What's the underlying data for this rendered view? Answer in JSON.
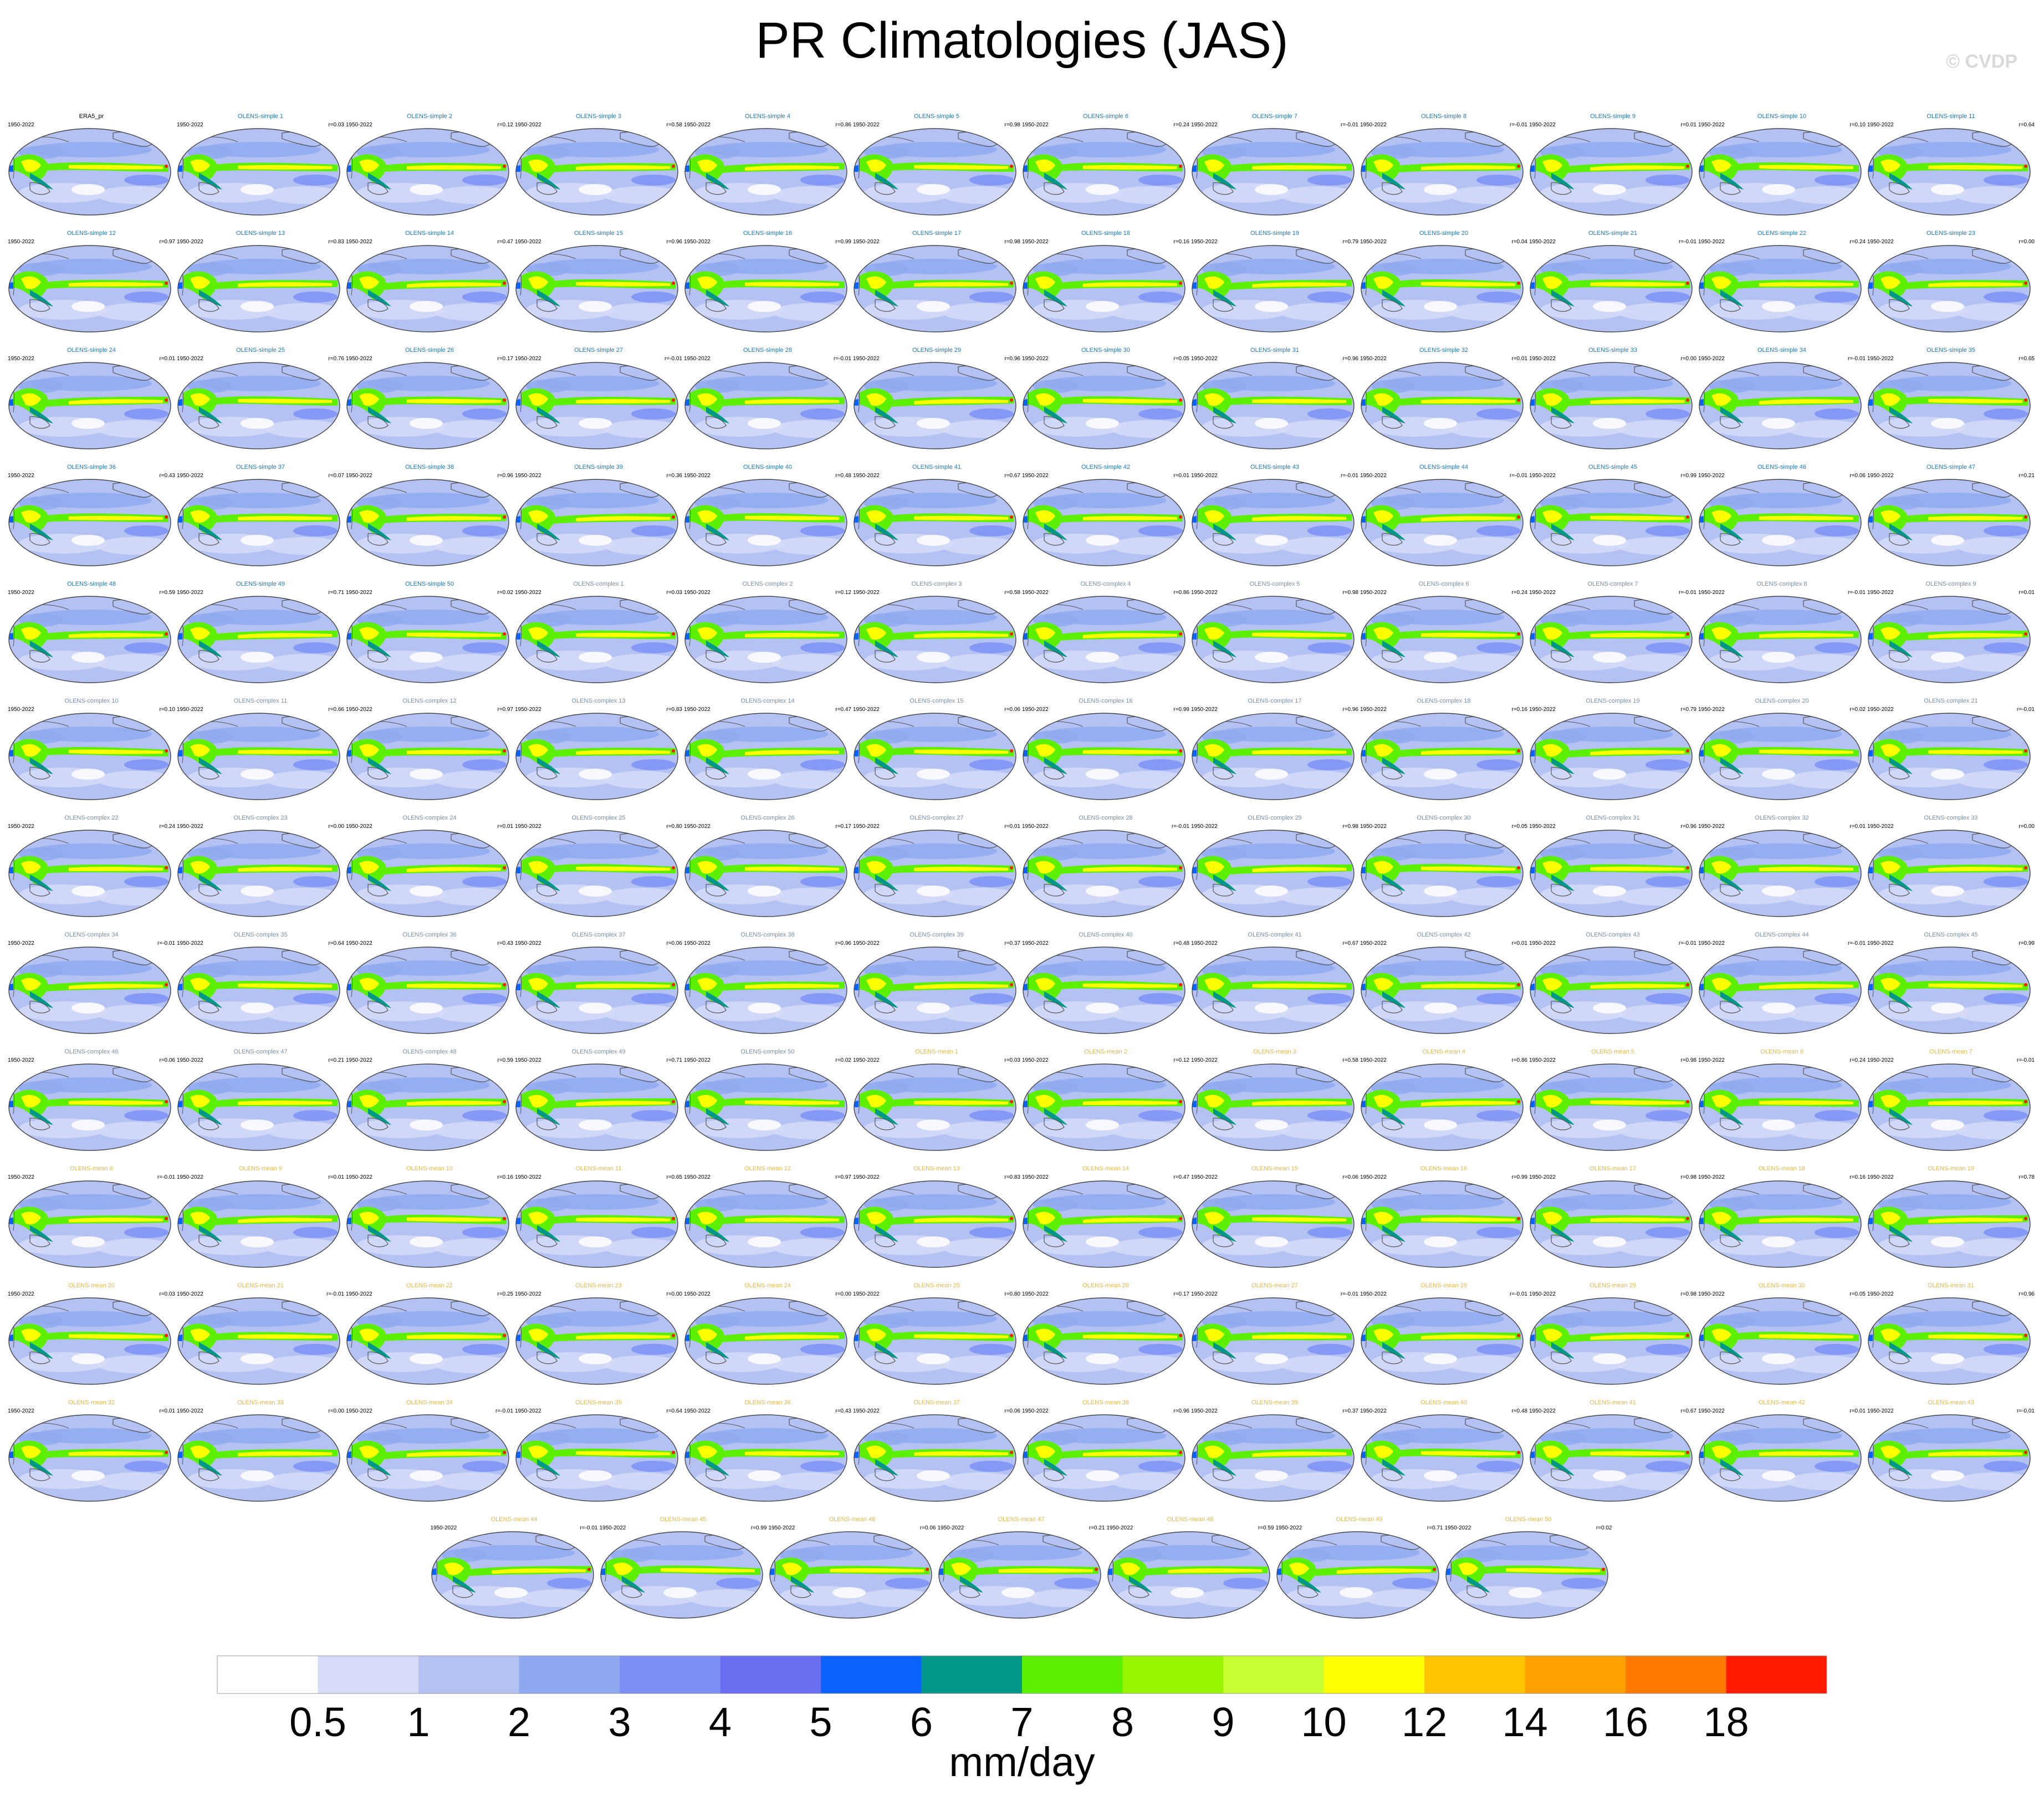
{
  "title": "PR Climatologies (JAS)",
  "watermark": "© CVDP",
  "panel_period": "1950-2022",
  "title_colors": {
    "reference": "#000000",
    "simple": "#1f78b4",
    "complex": "#7a8fa6",
    "mean": "#e0b84a"
  },
  "panels": [
    {
      "title": "ERA5_pr",
      "corr": "",
      "group": "reference"
    },
    {
      "title": "OLENS-simple 1",
      "corr": "r=0.03",
      "group": "simple"
    },
    {
      "title": "OLENS-simple 2",
      "corr": "r=0.12",
      "group": "simple"
    },
    {
      "title": "OLENS-simple 3",
      "corr": "r=0.58",
      "group": "simple"
    },
    {
      "title": "OLENS-simple 4",
      "corr": "r=0.86",
      "group": "simple"
    },
    {
      "title": "OLENS-simple 5",
      "corr": "r=0.98",
      "group": "simple"
    },
    {
      "title": "OLENS-simple 6",
      "corr": "r=0.24",
      "group": "simple"
    },
    {
      "title": "OLENS-simple 7",
      "corr": "r=-0.01",
      "group": "simple"
    },
    {
      "title": "OLENS-simple 8",
      "corr": "r=-0.01",
      "group": "simple"
    },
    {
      "title": "OLENS-simple 9",
      "corr": "r=0.01",
      "group": "simple"
    },
    {
      "title": "OLENS-simple 10",
      "corr": "r=0.10",
      "group": "simple"
    },
    {
      "title": "OLENS-simple 11",
      "corr": "r=0.64",
      "group": "simple"
    },
    {
      "title": "OLENS-simple 12",
      "corr": "r=0.97",
      "group": "simple"
    },
    {
      "title": "OLENS-simple 13",
      "corr": "r=0.83",
      "group": "simple"
    },
    {
      "title": "OLENS-simple 14",
      "corr": "r=0.47",
      "group": "simple"
    },
    {
      "title": "OLENS-simple 15",
      "corr": "r=0.96",
      "group": "simple"
    },
    {
      "title": "OLENS-simple 16",
      "corr": "r=0.99",
      "group": "simple"
    },
    {
      "title": "OLENS-simple 17",
      "corr": "r=0.98",
      "group": "simple"
    },
    {
      "title": "OLENS-simple 18",
      "corr": "r=0.16",
      "group": "simple"
    },
    {
      "title": "OLENS-simple 19",
      "corr": "r=0.79",
      "group": "simple"
    },
    {
      "title": "OLENS-simple 20",
      "corr": "r=0.04",
      "group": "simple"
    },
    {
      "title": "OLENS-simple 21",
      "corr": "r=-0.01",
      "group": "simple"
    },
    {
      "title": "OLENS-simple 22",
      "corr": "r=0.24",
      "group": "simple"
    },
    {
      "title": "OLENS-simple 23",
      "corr": "r=0.00",
      "group": "simple"
    },
    {
      "title": "OLENS-simple 24",
      "corr": "r=0.01",
      "group": "simple"
    },
    {
      "title": "OLENS-simple 25",
      "corr": "r=0.76",
      "group": "simple"
    },
    {
      "title": "OLENS-simple 26",
      "corr": "r=0.17",
      "group": "simple"
    },
    {
      "title": "OLENS-simple 27",
      "corr": "r=-0.01",
      "group": "simple"
    },
    {
      "title": "OLENS-simple 28",
      "corr": "r=-0.01",
      "group": "simple"
    },
    {
      "title": "OLENS-simple 29",
      "corr": "r=0.96",
      "group": "simple"
    },
    {
      "title": "OLENS-simple 30",
      "corr": "r=0.05",
      "group": "simple"
    },
    {
      "title": "OLENS-simple 31",
      "corr": "r=0.96",
      "group": "simple"
    },
    {
      "title": "OLENS-simple 32",
      "corr": "r=0.01",
      "group": "simple"
    },
    {
      "title": "OLENS-simple 33",
      "corr": "r=0.00",
      "group": "simple"
    },
    {
      "title": "OLENS-simple 34",
      "corr": "r=-0.01",
      "group": "simple"
    },
    {
      "title": "OLENS-simple 35",
      "corr": "r=0.65",
      "group": "simple"
    },
    {
      "title": "OLENS-simple 36",
      "corr": "r=0.43",
      "group": "simple"
    },
    {
      "title": "OLENS-simple 37",
      "corr": "r=0.07",
      "group": "simple"
    },
    {
      "title": "OLENS-simple 38",
      "corr": "r=0.96",
      "group": "simple"
    },
    {
      "title": "OLENS-simple 39",
      "corr": "r=0.36",
      "group": "simple"
    },
    {
      "title": "OLENS-simple 40",
      "corr": "r=0.48",
      "group": "simple"
    },
    {
      "title": "OLENS-simple 41",
      "corr": "r=0.67",
      "group": "simple"
    },
    {
      "title": "OLENS-simple 42",
      "corr": "r=0.01",
      "group": "simple"
    },
    {
      "title": "OLENS-simple 43",
      "corr": "r=-0.01",
      "group": "simple"
    },
    {
      "title": "OLENS-simple 44",
      "corr": "r=-0.01",
      "group": "simple"
    },
    {
      "title": "OLENS-simple 45",
      "corr": "r=0.99",
      "group": "simple"
    },
    {
      "title": "OLENS-simple 46",
      "corr": "r=0.06",
      "group": "simple"
    },
    {
      "title": "OLENS-simple 47",
      "corr": "r=0.21",
      "group": "simple"
    },
    {
      "title": "OLENS-simple 48",
      "corr": "r=0.59",
      "group": "simple"
    },
    {
      "title": "OLENS-simple 49",
      "corr": "r=0.71",
      "group": "simple"
    },
    {
      "title": "OLENS-simple 50",
      "corr": "r=0.02",
      "group": "simple"
    },
    {
      "title": "OLENS-complex 1",
      "corr": "r=0.03",
      "group": "complex"
    },
    {
      "title": "OLENS-complex 2",
      "corr": "r=0.12",
      "group": "complex"
    },
    {
      "title": "OLENS-complex 3",
      "corr": "r=0.58",
      "group": "complex"
    },
    {
      "title": "OLENS-complex 4",
      "corr": "r=0.86",
      "group": "complex"
    },
    {
      "title": "OLENS-complex 5",
      "corr": "r=0.98",
      "group": "complex"
    },
    {
      "title": "OLENS-complex 6",
      "corr": "r=0.24",
      "group": "complex"
    },
    {
      "title": "OLENS-complex 7",
      "corr": "r=-0.01",
      "group": "complex"
    },
    {
      "title": "OLENS-complex 8",
      "corr": "r=-0.01",
      "group": "complex"
    },
    {
      "title": "OLENS-complex 9",
      "corr": "r=0.01",
      "group": "complex"
    },
    {
      "title": "OLENS-complex 10",
      "corr": "r=0.10",
      "group": "complex"
    },
    {
      "title": "OLENS-complex 11",
      "corr": "r=0.66",
      "group": "complex"
    },
    {
      "title": "OLENS-complex 12",
      "corr": "r=0.97",
      "group": "complex"
    },
    {
      "title": "OLENS-complex 13",
      "corr": "r=0.83",
      "group": "complex"
    },
    {
      "title": "OLENS-complex 14",
      "corr": "r=0.47",
      "group": "complex"
    },
    {
      "title": "OLENS-complex 15",
      "corr": "r=0.06",
      "group": "complex"
    },
    {
      "title": "OLENS-complex 16",
      "corr": "r=0.99",
      "group": "complex"
    },
    {
      "title": "OLENS-complex 17",
      "corr": "r=0.96",
      "group": "complex"
    },
    {
      "title": "OLENS-complex 18",
      "corr": "r=0.16",
      "group": "complex"
    },
    {
      "title": "OLENS-complex 19",
      "corr": "r=0.79",
      "group": "complex"
    },
    {
      "title": "OLENS-complex 20",
      "corr": "r=0.02",
      "group": "complex"
    },
    {
      "title": "OLENS-complex 21",
      "corr": "r=-0.01",
      "group": "complex"
    },
    {
      "title": "OLENS-complex 22",
      "corr": "r=0.24",
      "group": "complex"
    },
    {
      "title": "OLENS-complex 23",
      "corr": "r=0.00",
      "group": "complex"
    },
    {
      "title": "OLENS-complex 24",
      "corr": "r=0.01",
      "group": "complex"
    },
    {
      "title": "OLENS-complex 25",
      "corr": "r=0.80",
      "group": "complex"
    },
    {
      "title": "OLENS-complex 26",
      "corr": "r=0.17",
      "group": "complex"
    },
    {
      "title": "OLENS-complex 27",
      "corr": "r=0.01",
      "group": "complex"
    },
    {
      "title": "OLENS-complex 28",
      "corr": "r=-0.01",
      "group": "complex"
    },
    {
      "title": "OLENS-complex 29",
      "corr": "r=0.98",
      "group": "complex"
    },
    {
      "title": "OLENS-complex 30",
      "corr": "r=0.05",
      "group": "complex"
    },
    {
      "title": "OLENS-complex 31",
      "corr": "r=0.96",
      "group": "complex"
    },
    {
      "title": "OLENS-complex 32",
      "corr": "r=0.01",
      "group": "complex"
    },
    {
      "title": "OLENS-complex 33",
      "corr": "r=0.00",
      "group": "complex"
    },
    {
      "title": "OLENS-complex 34",
      "corr": "r=-0.01",
      "group": "complex"
    },
    {
      "title": "OLENS-complex 35",
      "corr": "r=0.64",
      "group": "complex"
    },
    {
      "title": "OLENS-complex 36",
      "corr": "r=0.43",
      "group": "complex"
    },
    {
      "title": "OLENS-complex 37",
      "corr": "r=0.06",
      "group": "complex"
    },
    {
      "title": "OLENS-complex 38",
      "corr": "r=0.96",
      "group": "complex"
    },
    {
      "title": "OLENS-complex 39",
      "corr": "r=0.37",
      "group": "complex"
    },
    {
      "title": "OLENS-complex 40",
      "corr": "r=0.48",
      "group": "complex"
    },
    {
      "title": "OLENS-complex 41",
      "corr": "r=0.67",
      "group": "complex"
    },
    {
      "title": "OLENS-complex 42",
      "corr": "r=0.01",
      "group": "complex"
    },
    {
      "title": "OLENS-complex 43",
      "corr": "r=-0.01",
      "group": "complex"
    },
    {
      "title": "OLENS-complex 44",
      "corr": "r=-0.01",
      "group": "complex"
    },
    {
      "title": "OLENS-complex 45",
      "corr": "r=0.99",
      "group": "complex"
    },
    {
      "title": "OLENS-complex 46",
      "corr": "r=0.06",
      "group": "complex"
    },
    {
      "title": "OLENS-complex 47",
      "corr": "r=0.21",
      "group": "complex"
    },
    {
      "title": "OLENS-complex 48",
      "corr": "r=0.59",
      "group": "complex"
    },
    {
      "title": "OLENS-complex 49",
      "corr": "r=0.71",
      "group": "complex"
    },
    {
      "title": "OLENS-complex 50",
      "corr": "r=0.02",
      "group": "complex"
    },
    {
      "title": "OLENS-mean 1",
      "corr": "r=0.03",
      "group": "mean"
    },
    {
      "title": "OLENS-mean 2",
      "corr": "r=0.12",
      "group": "mean"
    },
    {
      "title": "OLENS-mean 3",
      "corr": "r=0.58",
      "group": "mean"
    },
    {
      "title": "OLENS-mean 4",
      "corr": "r=0.86",
      "group": "mean"
    },
    {
      "title": "OLENS-mean 5",
      "corr": "r=0.98",
      "group": "mean"
    },
    {
      "title": "OLENS-mean 6",
      "corr": "r=0.24",
      "group": "mean"
    },
    {
      "title": "OLENS-mean 7",
      "corr": "r=-0.01",
      "group": "mean"
    },
    {
      "title": "OLENS-mean 8",
      "corr": "r=-0.01",
      "group": "mean"
    },
    {
      "title": "OLENS-mean 9",
      "corr": "r=0.01",
      "group": "mean"
    },
    {
      "title": "OLENS-mean 10",
      "corr": "r=0.16",
      "group": "mean"
    },
    {
      "title": "OLENS-mean 11",
      "corr": "r=0.65",
      "group": "mean"
    },
    {
      "title": "OLENS-mean 12",
      "corr": "r=0.97",
      "group": "mean"
    },
    {
      "title": "OLENS-mean 13",
      "corr": "r=0.83",
      "group": "mean"
    },
    {
      "title": "OLENS-mean 14",
      "corr": "r=0.47",
      "group": "mean"
    },
    {
      "title": "OLENS-mean 15",
      "corr": "r=0.06",
      "group": "mean"
    },
    {
      "title": "OLENS-mean 16",
      "corr": "r=0.99",
      "group": "mean"
    },
    {
      "title": "OLENS-mean 17",
      "corr": "r=0.98",
      "group": "mean"
    },
    {
      "title": "OLENS-mean 18",
      "corr": "r=0.16",
      "group": "mean"
    },
    {
      "title": "OLENS-mean 19",
      "corr": "r=0.78",
      "group": "mean"
    },
    {
      "title": "OLENS-mean 20",
      "corr": "r=0.03",
      "group": "mean"
    },
    {
      "title": "OLENS-mean 21",
      "corr": "r=-0.01",
      "group": "mean"
    },
    {
      "title": "OLENS-mean 22",
      "corr": "r=0.25",
      "group": "mean"
    },
    {
      "title": "OLENS-mean 23",
      "corr": "r=0.00",
      "group": "mean"
    },
    {
      "title": "OLENS-mean 24",
      "corr": "r=0.00",
      "group": "mean"
    },
    {
      "title": "OLENS-mean 25",
      "corr": "r=0.80",
      "group": "mean"
    },
    {
      "title": "OLENS-mean 26",
      "corr": "r=0.17",
      "group": "mean"
    },
    {
      "title": "OLENS-mean 27",
      "corr": "r=-0.01",
      "group": "mean"
    },
    {
      "title": "OLENS-mean 28",
      "corr": "r=-0.01",
      "group": "mean"
    },
    {
      "title": "OLENS-mean 29",
      "corr": "r=0.98",
      "group": "mean"
    },
    {
      "title": "OLENS-mean 30",
      "corr": "r=0.05",
      "group": "mean"
    },
    {
      "title": "OLENS-mean 31",
      "corr": "r=0.96",
      "group": "mean"
    },
    {
      "title": "OLENS-mean 32",
      "corr": "r=0.01",
      "group": "mean"
    },
    {
      "title": "OLENS-mean 33",
      "corr": "r=0.00",
      "group": "mean"
    },
    {
      "title": "OLENS-mean 34",
      "corr": "r=-0.01",
      "group": "mean"
    },
    {
      "title": "OLENS-mean 35",
      "corr": "r=0.64",
      "group": "mean"
    },
    {
      "title": "OLENS-mean 36",
      "corr": "r=0.43",
      "group": "mean"
    },
    {
      "title": "OLENS-mean 37",
      "corr": "r=0.06",
      "group": "mean"
    },
    {
      "title": "OLENS-mean 38",
      "corr": "r=0.96",
      "group": "mean"
    },
    {
      "title": "OLENS-mean 39",
      "corr": "r=0.37",
      "group": "mean"
    },
    {
      "title": "OLENS-mean 40",
      "corr": "r=0.48",
      "group": "mean"
    },
    {
      "title": "OLENS-mean 41",
      "corr": "r=0.67",
      "group": "mean"
    },
    {
      "title": "OLENS-mean 42",
      "corr": "r=0.01",
      "group": "mean"
    },
    {
      "title": "OLENS-mean 43",
      "corr": "r=-0.01",
      "group": "mean"
    },
    {
      "title": "OLENS-mean 44",
      "corr": "r=-0.01",
      "group": "mean"
    },
    {
      "title": "OLENS-mean 45",
      "corr": "r=0.99",
      "group": "mean"
    },
    {
      "title": "OLENS-mean 46",
      "corr": "r=0.06",
      "group": "mean"
    },
    {
      "title": "OLENS-mean 47",
      "corr": "r=0.21",
      "group": "mean"
    },
    {
      "title": "OLENS-mean 48",
      "corr": "r=0.59",
      "group": "mean"
    },
    {
      "title": "OLENS-mean 49",
      "corr": "r=0.71",
      "group": "mean"
    },
    {
      "title": "OLENS-mean 50",
      "corr": "r=0.02",
      "group": "mean"
    }
  ],
  "chart_data": {
    "type": "heatmap",
    "title": "PR Climatologies (JAS)",
    "units": "mm/day",
    "colorbar": {
      "levels": [
        0.5,
        1,
        2,
        3,
        4,
        5,
        6,
        7,
        8,
        9,
        10,
        12,
        14,
        16,
        18
      ],
      "level_labels": [
        "0.5",
        "1",
        "2",
        "3",
        "4",
        "5",
        "6",
        "7",
        "8",
        "9",
        "10",
        "12",
        "14",
        "16",
        "18"
      ],
      "colors": [
        "#ffffff",
        "#d6dcf7",
        "#b3c1f3",
        "#8fa9f0",
        "#7e90f5",
        "#6a6ef0",
        "#0b63ff",
        "#009688",
        "#5cf000",
        "#9af500",
        "#c8ff33",
        "#ffff00",
        "#ffc400",
        "#ffa000",
        "#ff7a00",
        "#ff1a00"
      ]
    }
  }
}
